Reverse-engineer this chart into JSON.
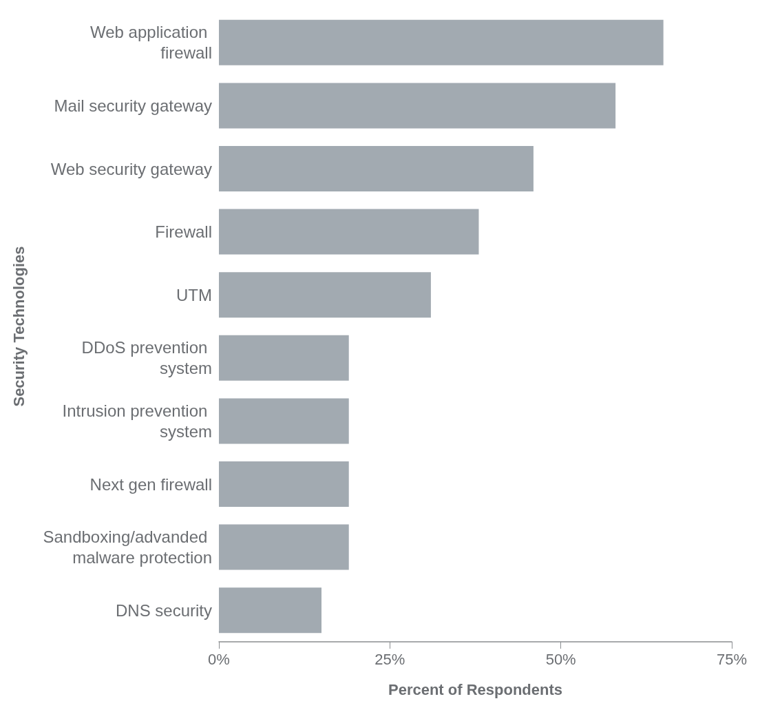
{
  "chart_data": {
    "type": "bar",
    "orientation": "horizontal",
    "xlabel": "Percent of Respondents",
    "ylabel": "Security Technologies",
    "categories": [
      "Web application firewall",
      "Mail security gateway",
      "Web security gateway",
      "Firewall",
      "UTM",
      "DDoS prevention system",
      "Intrusion prevention system",
      "Next gen firewall",
      "Sandboxing/advanded malware protection",
      "DNS security"
    ],
    "values": [
      65,
      58,
      46,
      38,
      31,
      19,
      19,
      19,
      19,
      15
    ],
    "color": "#a2aab1",
    "xlim": [
      0,
      75
    ],
    "xticks": [
      {
        "value": 0,
        "label": "0%"
      },
      {
        "value": 25,
        "label": "25%"
      },
      {
        "value": 50,
        "label": "50%"
      },
      {
        "value": 75,
        "label": "75%"
      }
    ],
    "grid": false
  }
}
